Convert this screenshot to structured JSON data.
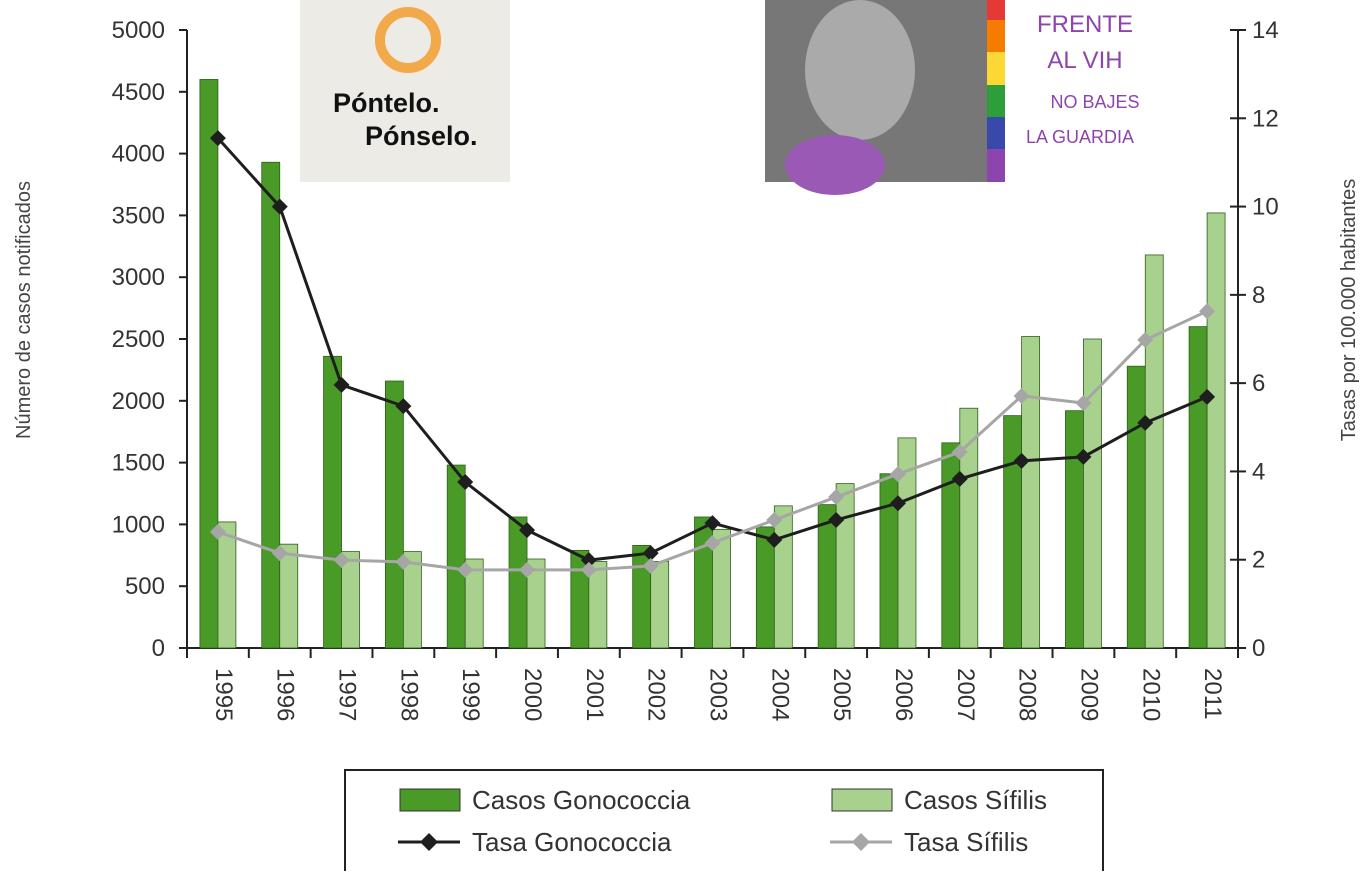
{
  "chart_data": {
    "type": "bar",
    "categories": [
      "1995",
      "1996",
      "1997",
      "1998",
      "1999",
      "2000",
      "2001",
      "2002",
      "2003",
      "2004",
      "2005",
      "2006",
      "2007",
      "2008",
      "2009",
      "2010",
      "2011"
    ],
    "y_label": "Número de casos notificados",
    "y2_label": "Tasas por 100.000 habitantes",
    "ylim": [
      0,
      5000
    ],
    "yticks": [
      0,
      500,
      1000,
      1500,
      2000,
      2500,
      3000,
      3500,
      4000,
      4500,
      5000
    ],
    "y2lim": [
      0,
      14
    ],
    "y2ticks": [
      0,
      2,
      4,
      6,
      8,
      10,
      12,
      14
    ],
    "series": [
      {
        "name": "Casos Gonococcia",
        "type": "bar",
        "color": "#4a9a28",
        "values": [
          4600,
          3930,
          2360,
          2160,
          1480,
          1060,
          790,
          830,
          1060,
          980,
          1160,
          1410,
          1660,
          1880,
          1920,
          2280,
          2600
        ]
      },
      {
        "name": "Casos Sífilis",
        "type": "bar",
        "color": "#a9d18e",
        "values": [
          1020,
          840,
          780,
          780,
          720,
          720,
          700,
          700,
          960,
          1150,
          1330,
          1700,
          1940,
          2520,
          2500,
          3180,
          3520
        ]
      },
      {
        "name": "Tasa Gonococcia",
        "type": "line",
        "axis": "y2",
        "color": "#1e1e1e",
        "values": [
          11.55,
          10.0,
          5.96,
          5.48,
          3.76,
          2.67,
          1.99,
          2.15,
          2.83,
          2.45,
          2.9,
          3.28,
          3.83,
          4.24,
          4.33,
          5.1,
          5.69
        ]
      },
      {
        "name": "Tasa Sífilis",
        "type": "line",
        "axis": "y2",
        "color": "#a6a6a6",
        "values": [
          2.63,
          2.15,
          1.99,
          1.95,
          1.77,
          1.77,
          1.77,
          1.86,
          2.38,
          2.9,
          3.42,
          3.94,
          4.44,
          5.71,
          5.55,
          6.98,
          7.63
        ]
      }
    ]
  },
  "posters": [
    {
      "lines": [
        "Póntelo.",
        "Pónselo."
      ]
    },
    {
      "lines": [
        "FRENTE",
        "AL VIH",
        "NO BAJES",
        "LA GUARDIA"
      ]
    }
  ]
}
